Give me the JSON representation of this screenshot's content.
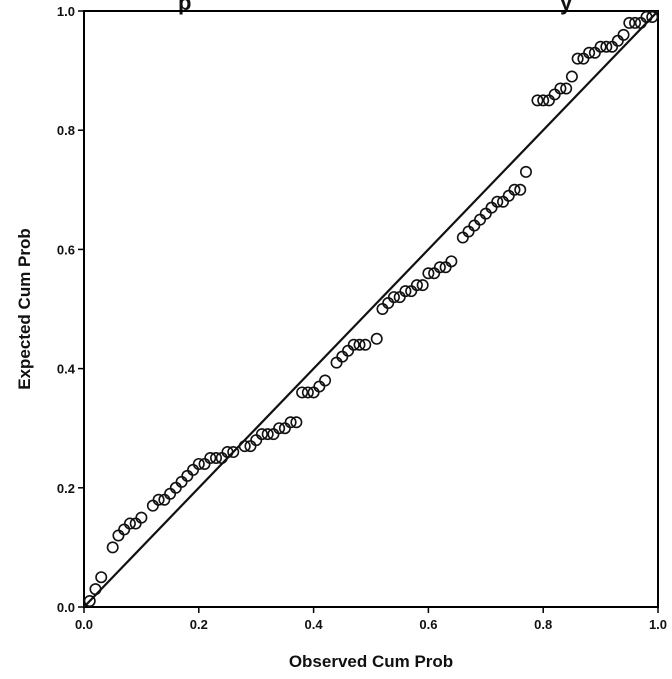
{
  "chart_data": {
    "type": "scatter",
    "title": "",
    "xlabel": "Observed Cum Prob",
    "ylabel": "Expected Cum Prob",
    "xlim": [
      0,
      1
    ],
    "ylim": [
      0,
      1
    ],
    "x_ticks": [
      "0.0",
      "0.2",
      "0.4",
      "0.6",
      "0.8",
      "1.0"
    ],
    "y_ticks": [
      "0.0",
      "0.2",
      "0.4",
      "0.6",
      "0.8",
      "1.0"
    ],
    "reference_line": {
      "from": [
        0,
        0
      ],
      "to": [
        1,
        1
      ]
    },
    "grid": false,
    "legend": "none",
    "marker": "open-circle",
    "colors": {
      "marker": "#111111",
      "line": "#111111",
      "frame": "#000000"
    },
    "points": [
      [
        0.01,
        0.01
      ],
      [
        0.02,
        0.03
      ],
      [
        0.03,
        0.05
      ],
      [
        0.05,
        0.1
      ],
      [
        0.06,
        0.12
      ],
      [
        0.07,
        0.13
      ],
      [
        0.08,
        0.14
      ],
      [
        0.09,
        0.14
      ],
      [
        0.1,
        0.15
      ],
      [
        0.12,
        0.17
      ],
      [
        0.13,
        0.18
      ],
      [
        0.14,
        0.18
      ],
      [
        0.15,
        0.19
      ],
      [
        0.16,
        0.2
      ],
      [
        0.17,
        0.21
      ],
      [
        0.18,
        0.22
      ],
      [
        0.19,
        0.23
      ],
      [
        0.2,
        0.24
      ],
      [
        0.21,
        0.24
      ],
      [
        0.22,
        0.25
      ],
      [
        0.23,
        0.25
      ],
      [
        0.24,
        0.25
      ],
      [
        0.25,
        0.26
      ],
      [
        0.26,
        0.26
      ],
      [
        0.28,
        0.27
      ],
      [
        0.29,
        0.27
      ],
      [
        0.3,
        0.28
      ],
      [
        0.31,
        0.29
      ],
      [
        0.32,
        0.29
      ],
      [
        0.33,
        0.29
      ],
      [
        0.34,
        0.3
      ],
      [
        0.35,
        0.3
      ],
      [
        0.36,
        0.31
      ],
      [
        0.37,
        0.31
      ],
      [
        0.38,
        0.36
      ],
      [
        0.39,
        0.36
      ],
      [
        0.4,
        0.36
      ],
      [
        0.41,
        0.37
      ],
      [
        0.42,
        0.38
      ],
      [
        0.44,
        0.41
      ],
      [
        0.45,
        0.42
      ],
      [
        0.46,
        0.43
      ],
      [
        0.47,
        0.44
      ],
      [
        0.48,
        0.44
      ],
      [
        0.49,
        0.44
      ],
      [
        0.51,
        0.45
      ],
      [
        0.52,
        0.5
      ],
      [
        0.53,
        0.51
      ],
      [
        0.54,
        0.52
      ],
      [
        0.55,
        0.52
      ],
      [
        0.56,
        0.53
      ],
      [
        0.57,
        0.53
      ],
      [
        0.58,
        0.54
      ],
      [
        0.59,
        0.54
      ],
      [
        0.6,
        0.56
      ],
      [
        0.61,
        0.56
      ],
      [
        0.62,
        0.57
      ],
      [
        0.63,
        0.57
      ],
      [
        0.64,
        0.58
      ],
      [
        0.66,
        0.62
      ],
      [
        0.67,
        0.63
      ],
      [
        0.68,
        0.64
      ],
      [
        0.69,
        0.65
      ],
      [
        0.7,
        0.66
      ],
      [
        0.71,
        0.67
      ],
      [
        0.72,
        0.68
      ],
      [
        0.73,
        0.68
      ],
      [
        0.74,
        0.69
      ],
      [
        0.75,
        0.7
      ],
      [
        0.76,
        0.7
      ],
      [
        0.77,
        0.73
      ],
      [
        0.79,
        0.85
      ],
      [
        0.8,
        0.85
      ],
      [
        0.81,
        0.85
      ],
      [
        0.82,
        0.86
      ],
      [
        0.83,
        0.87
      ],
      [
        0.84,
        0.87
      ],
      [
        0.85,
        0.89
      ],
      [
        0.86,
        0.92
      ],
      [
        0.87,
        0.92
      ],
      [
        0.88,
        0.93
      ],
      [
        0.89,
        0.93
      ],
      [
        0.9,
        0.94
      ],
      [
        0.91,
        0.94
      ],
      [
        0.92,
        0.94
      ],
      [
        0.93,
        0.95
      ],
      [
        0.94,
        0.96
      ],
      [
        0.95,
        0.98
      ],
      [
        0.96,
        0.98
      ],
      [
        0.97,
        0.98
      ],
      [
        0.98,
        0.99
      ],
      [
        0.99,
        0.99
      ]
    ]
  }
}
